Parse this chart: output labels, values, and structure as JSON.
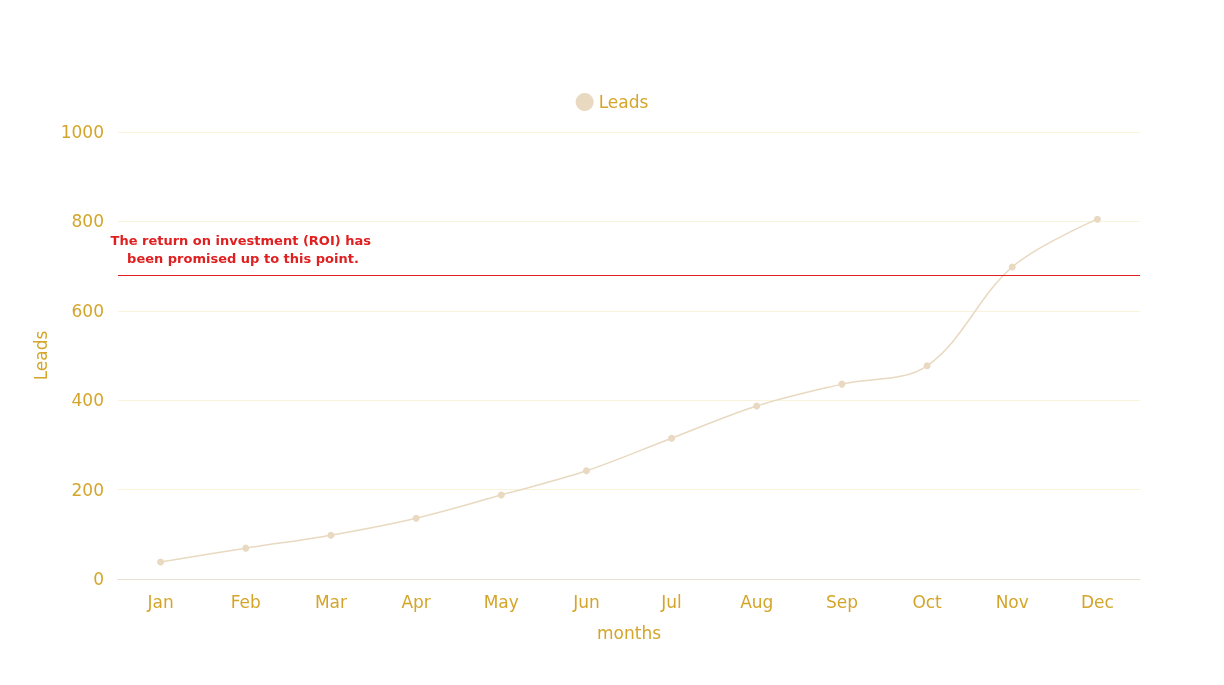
{
  "chart_data": {
    "type": "line",
    "xlabel": "months",
    "ylabel": "Leads",
    "categories": [
      "Jan",
      "Feb",
      "Mar",
      "Apr",
      "May",
      "Jun",
      "Jul",
      "Aug",
      "Sep",
      "Oct",
      "Nov",
      "Dec"
    ],
    "series": [
      {
        "name": "Leads",
        "color": "#e8d9c0",
        "values": [
          38,
          69,
          98,
          136,
          188,
          242,
          315,
          387,
          436,
          477,
          698,
          805
        ]
      }
    ],
    "ylim": [
      0,
      1000
    ],
    "yticks": [
      0,
      200,
      400,
      600,
      800,
      1000
    ],
    "grid": "y",
    "legend": "top",
    "marker": "circle",
    "line_style": "solid",
    "ref_lines": [
      {
        "axis": "y",
        "value": 680,
        "label": "The return on investment (ROI) has been promised up to this point.",
        "color": "#e02020"
      }
    ]
  }
}
